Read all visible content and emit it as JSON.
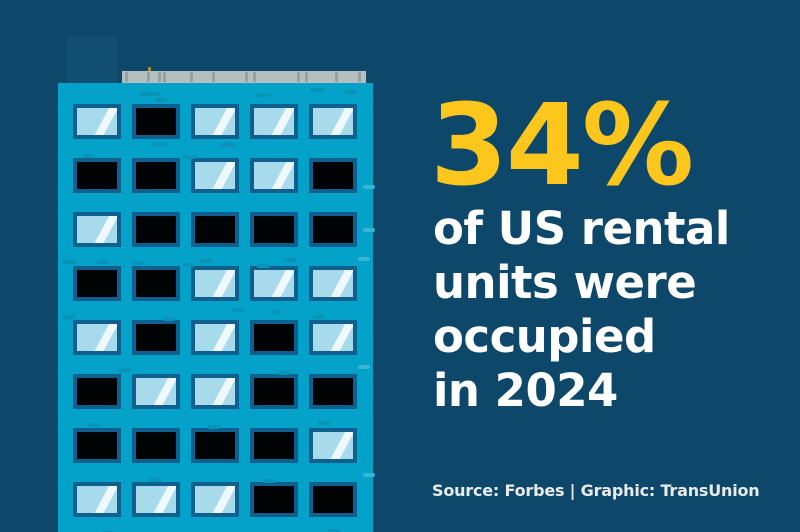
{
  "colors": {
    "background": "#0D4769",
    "building": "#04A2C9",
    "window_frame": "#10608F",
    "window_lit": "#A7DAEA",
    "window_dark": "#010305",
    "window_shine": "#EFF8FC",
    "ledge": "#B5BFC0",
    "ledge_tick": "#96A1A3",
    "rooftop_box": "#124F73",
    "dash_dark": "#0893B8",
    "dash_light": "#39B4D3",
    "accent_yellow": "#FCC61D",
    "text_white": "#FFFFFF",
    "source_text": "#E8ECED"
  },
  "headline": {
    "stat": "34%",
    "lines": [
      "of US rental",
      "units were",
      "occupied",
      "in 2024"
    ]
  },
  "source": "Source: Forbes | Graphic: TransUnion",
  "building": {
    "rows": 8,
    "cols": 5,
    "window_pattern": [
      [
        "lit",
        "dark",
        "lit",
        "lit",
        "lit"
      ],
      [
        "dark",
        "dark",
        "lit",
        "lit",
        "dark"
      ],
      [
        "lit",
        "dark",
        "dark",
        "dark",
        "dark"
      ],
      [
        "dark",
        "dark",
        "lit",
        "lit",
        "lit"
      ],
      [
        "lit",
        "dark",
        "lit",
        "dark",
        "lit"
      ],
      [
        "dark",
        "lit",
        "lit",
        "dark",
        "dark"
      ],
      [
        "dark",
        "dark",
        "dark",
        "dark",
        "lit"
      ],
      [
        "lit",
        "lit",
        "lit",
        "dark",
        "dark"
      ]
    ]
  }
}
